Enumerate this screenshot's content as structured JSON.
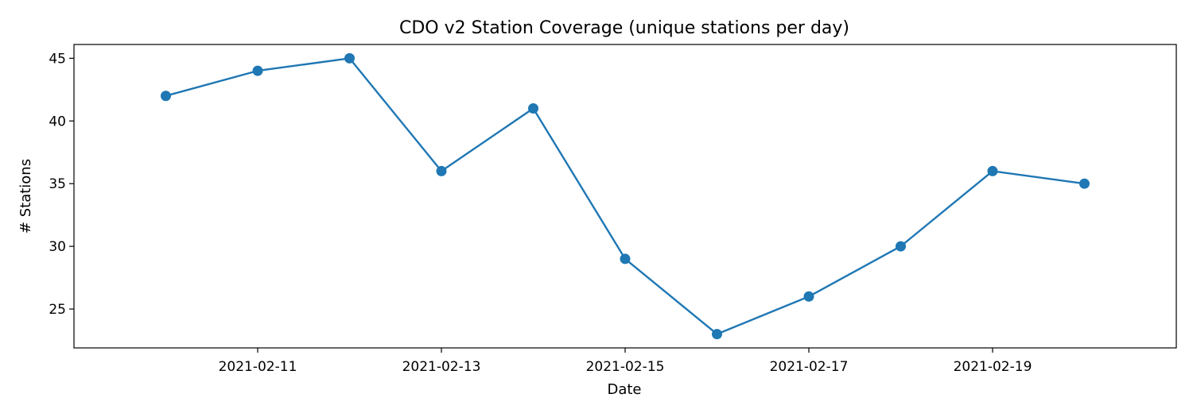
{
  "chart_data": {
    "type": "line",
    "title": "CDO v2 Station Coverage (unique stations per day)",
    "xlabel": "Date",
    "ylabel": "# Stations",
    "x": [
      "2021-02-10",
      "2021-02-11",
      "2021-02-12",
      "2021-02-13",
      "2021-02-14",
      "2021-02-15",
      "2021-02-16",
      "2021-02-17",
      "2021-02-18",
      "2021-02-19",
      "2021-02-20"
    ],
    "series": [
      {
        "values": [
          42,
          44,
          45,
          36,
          41,
          29,
          23,
          26,
          30,
          36,
          35
        ]
      }
    ],
    "x_ticks": [
      "2021-02-11",
      "2021-02-13",
      "2021-02-15",
      "2021-02-17",
      "2021-02-19"
    ],
    "y_ticks": [
      25,
      30,
      35,
      40,
      45
    ],
    "ylim": [
      21.9,
      46.1
    ],
    "xlim": [
      "2021-02-09",
      "2021-02-21"
    ],
    "grid": false,
    "legend": "none",
    "line_color": "#1f77b4",
    "marker": "circle"
  }
}
